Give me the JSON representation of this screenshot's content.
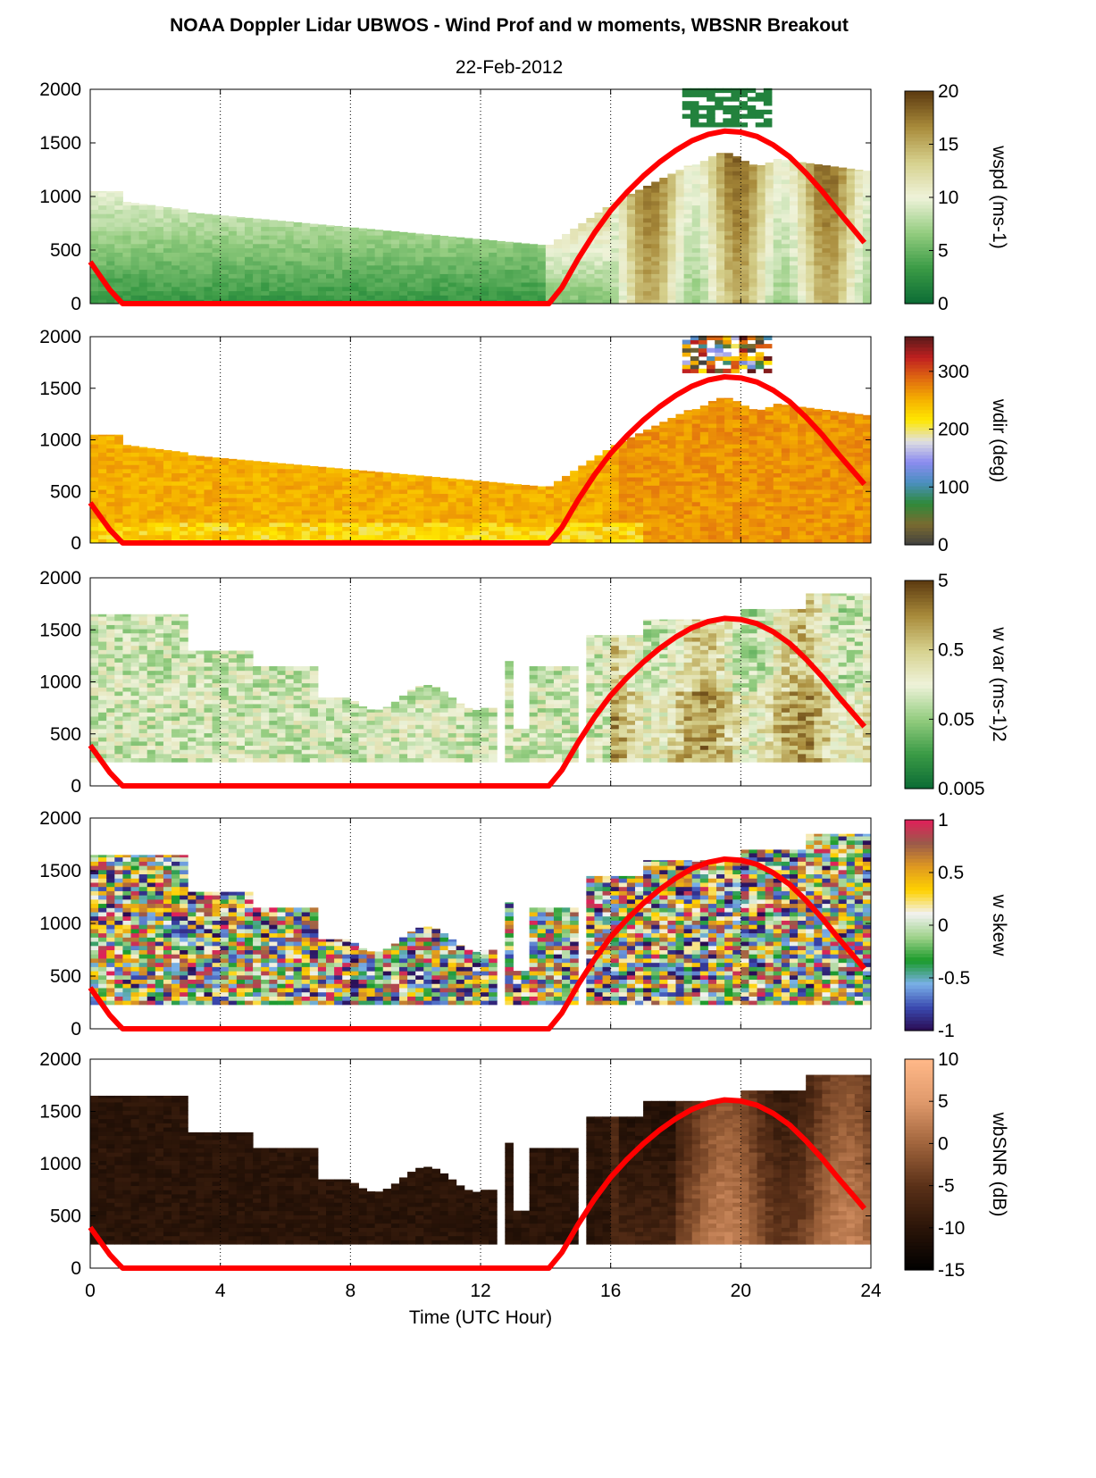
{
  "title": "NOAA Doppler Lidar UBWOS - Wind Prof and w moments, WBSNR Breakout",
  "subtitle": "22-Feb-2012",
  "chart_data": [
    {
      "type": "heatmap",
      "panel": "wspd",
      "xlim": [
        0,
        24
      ],
      "ylim": [
        0,
        2000
      ],
      "x_ticks": [
        "0",
        "4",
        "8",
        "12",
        "16",
        "20",
        "24"
      ],
      "y_ticks": [
        "0",
        "500",
        "1000",
        "1500",
        "2000"
      ],
      "colorbar_label": "wspd (ms-1)",
      "colorbar_ticks": [
        "0",
        "5",
        "10",
        "15",
        "20"
      ],
      "colorbar_range": [
        0,
        20
      ],
      "colormap": [
        "#0b6b35",
        "#3a9a45",
        "#93cc7f",
        "#eff3da",
        "#d6d18d",
        "#a88a3a",
        "#5c3a10"
      ]
    },
    {
      "type": "heatmap",
      "panel": "wdir",
      "xlim": [
        0,
        24
      ],
      "ylim": [
        0,
        2000
      ],
      "x_ticks": [
        "0",
        "4",
        "8",
        "12",
        "16",
        "20",
        "24"
      ],
      "y_ticks": [
        "0",
        "500",
        "1000",
        "1500",
        "2000"
      ],
      "colorbar_label": "wdir (deg)",
      "colorbar_ticks": [
        "0",
        "100",
        "200",
        "300"
      ],
      "colorbar_range": [
        0,
        360
      ],
      "colormap": [
        "#404040",
        "#7a6a30",
        "#2f8a3a",
        "#4a8fc0",
        "#8c8cf0",
        "#e0e0e0",
        "#ffe800",
        "#f5b000",
        "#e06a10",
        "#c02020",
        "#5a1a1a"
      ]
    },
    {
      "type": "heatmap",
      "panel": "w var",
      "xlim": [
        0,
        24
      ],
      "ylim": [
        0,
        2000
      ],
      "x_ticks": [
        "0",
        "4",
        "8",
        "12",
        "16",
        "20",
        "24"
      ],
      "y_ticks": [
        "0",
        "500",
        "1000",
        "1500",
        "2000"
      ],
      "colorbar_label": "w var (ms-1)2",
      "colorbar_ticks": [
        "0.005",
        "0.05",
        "0.5",
        "5"
      ],
      "colorbar_range": [
        0.005,
        5
      ],
      "colorbar_scale": "log",
      "colormap": [
        "#0b6b35",
        "#3a9a45",
        "#93cc7f",
        "#eff3da",
        "#d6d18d",
        "#a88a3a",
        "#5c3a10"
      ]
    },
    {
      "type": "heatmap",
      "panel": "w skew",
      "xlim": [
        0,
        24
      ],
      "ylim": [
        0,
        2000
      ],
      "x_ticks": [
        "0",
        "4",
        "8",
        "12",
        "16",
        "20",
        "24"
      ],
      "y_ticks": [
        "0",
        "500",
        "1000",
        "1500",
        "2000"
      ],
      "colorbar_label": "w skew",
      "colorbar_ticks": [
        "-1",
        "-0.5",
        "0",
        "0.5",
        "1"
      ],
      "colorbar_range": [
        -1,
        1
      ],
      "colormap": [
        "#2a0a50",
        "#3a4ab0",
        "#7ab0e8",
        "#1a9a2a",
        "#9ed28a",
        "#f2f2f2",
        "#ffd200",
        "#e09a20",
        "#9a5a4a",
        "#e0205a"
      ]
    },
    {
      "type": "heatmap",
      "panel": "wbSNR",
      "xlim": [
        0,
        24
      ],
      "ylim": [
        0,
        2000
      ],
      "x_ticks": [
        "0",
        "4",
        "8",
        "12",
        "16",
        "20",
        "24"
      ],
      "y_ticks": [
        "0",
        "500",
        "1000",
        "1500",
        "2000"
      ],
      "xlabel": "Time (UTC Hour)",
      "colorbar_label": "wbSNR (dB)",
      "colorbar_ticks": [
        "-15",
        "-10",
        "-5",
        "0",
        "5",
        "10"
      ],
      "colorbar_range": [
        -15,
        10
      ],
      "colormap": [
        "#000000",
        "#2a1408",
        "#5a3018",
        "#a0643c",
        "#e09a6c",
        "#ffb888"
      ]
    }
  ],
  "red_line": {
    "x": [
      0,
      0.3,
      0.6,
      0.9,
      1.0,
      14.1,
      14.5,
      15,
      15.5,
      16,
      16.5,
      17,
      17.5,
      18,
      18.5,
      19,
      19.5,
      20,
      20.5,
      21,
      21.5,
      22,
      22.5,
      23,
      23.5,
      23.8
    ],
    "y": [
      390,
      260,
      130,
      30,
      0,
      0,
      150,
      420,
      660,
      870,
      1040,
      1190,
      1320,
      1430,
      1520,
      1580,
      1610,
      1600,
      1560,
      1480,
      1370,
      1220,
      1050,
      860,
      680,
      570
    ]
  }
}
